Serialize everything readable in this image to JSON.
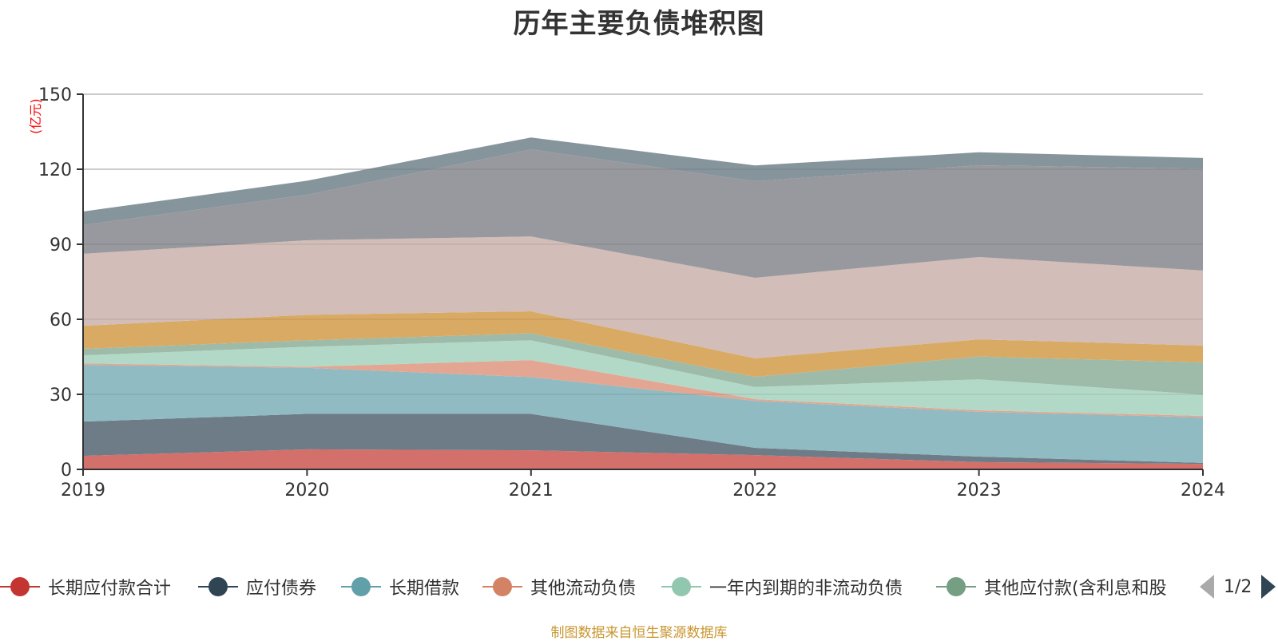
{
  "chart_data": {
    "type": "area",
    "stacked": true,
    "title": "历年主要负债堆积图",
    "ylabel": "(亿元)",
    "xlabel": "",
    "categories": [
      "2019",
      "2020",
      "2021",
      "2022",
      "2023",
      "2024"
    ],
    "ylim": [
      0,
      150
    ],
    "yticks": [
      0,
      30,
      60,
      90,
      120,
      150
    ],
    "grid": true,
    "legend_position": "bottom",
    "series": [
      {
        "name": "长期应付款合计",
        "color": "#c23531",
        "fill": "#d4706c",
        "values": [
          5.4,
          8.0,
          7.6,
          5.7,
          2.9,
          2.2
        ]
      },
      {
        "name": "应付债券",
        "color": "#2f4554",
        "fill": "#6e7c87",
        "values": [
          13.7,
          14.2,
          14.6,
          2.9,
          2.2,
          0.4
        ]
      },
      {
        "name": "长期借款",
        "color": "#61a0a8",
        "fill": "#90bbc2",
        "values": [
          22.7,
          18.4,
          14.7,
          18.8,
          17.9,
          18.2
        ]
      },
      {
        "name": "其他流动负债",
        "color": "#d48265",
        "fill": "#e3a692",
        "values": [
          0.6,
          0.4,
          6.8,
          0.7,
          0.6,
          0.6
        ]
      },
      {
        "name": "一年内到期的非流动负债",
        "color": "#91c7ae",
        "fill": "#b2d9c7",
        "values": [
          3.2,
          8.0,
          7.9,
          4.8,
          12.4,
          8.5
        ]
      },
      {
        "name": "其他应付款(含利息和股利)",
        "color": "#749f83",
        "fill": "#9dbba8",
        "values": [
          2.6,
          2.6,
          2.8,
          4.1,
          9.1,
          12.9
        ]
      },
      {
        "name": "series-7",
        "color": "#ca8622",
        "fill": "#d9aa63",
        "values": [
          9.2,
          10.2,
          8.8,
          7.4,
          6.9,
          6.7
        ],
        "legend_hidden": true
      },
      {
        "name": "series-8",
        "color": "#bda29a",
        "fill": "#d2bdb8",
        "values": [
          28.8,
          29.8,
          29.9,
          32.2,
          32.9,
          30.0
        ],
        "legend_hidden": true
      },
      {
        "name": "series-9",
        "color": "#6e7074",
        "fill": "#98999e",
        "values": [
          11.5,
          18.2,
          34.8,
          38.6,
          36.7,
          40.7
        ],
        "legend_hidden": true
      },
      {
        "name": "series-10",
        "color": "#546570",
        "fill": "#86949c",
        "values": [
          5.4,
          5.6,
          4.8,
          6.3,
          5.2,
          4.3
        ],
        "legend_hidden": true
      }
    ]
  },
  "legend": {
    "items": [
      {
        "label": "长期应付款合计",
        "color": "#c23531"
      },
      {
        "label": "应付债券",
        "color": "#2f4554"
      },
      {
        "label": "长期借款",
        "color": "#61a0a8"
      },
      {
        "label": "其他流动负债",
        "color": "#d48265"
      },
      {
        "label": "一年内到期的非流动负债",
        "color": "#91c7ae"
      },
      {
        "label": "其他应付款(含利息和股",
        "color": "#749f83"
      }
    ],
    "page_text": "1/2"
  },
  "source_text": "制图数据来自恒生聚源数据库"
}
